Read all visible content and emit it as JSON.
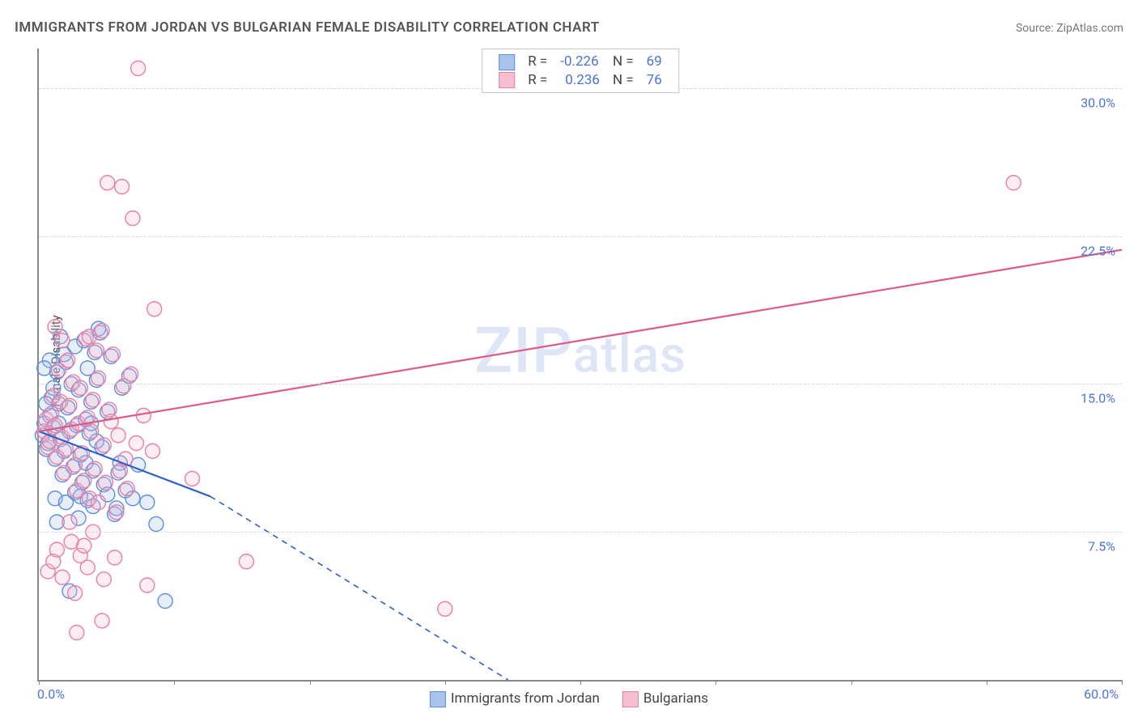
{
  "title": "IMMIGRANTS FROM JORDAN VS BULGARIAN FEMALE DISABILITY CORRELATION CHART",
  "source_label": "Source: ",
  "source_name": "ZipAtlas.com",
  "watermark_text": "ZIPatlas",
  "ylabel": "Female Disability",
  "chart": {
    "type": "scatter",
    "xlim": [
      0,
      60
    ],
    "ylim": [
      0,
      32
    ],
    "x_ticks": [
      0,
      7.5,
      15,
      22.5,
      30,
      37.5,
      45,
      52.5,
      60
    ],
    "x_tick_labels_shown": {
      "0": "0.0%",
      "60": "60.0%"
    },
    "y_gridlines": [
      7.5,
      15,
      22.5,
      30
    ],
    "y_tick_labels": {
      "7.5": "7.5%",
      "15": "15.0%",
      "22.5": "22.5%",
      "30": "30.0%"
    },
    "background_color": "#ffffff",
    "grid_color": "#d9d9d9",
    "axis_color": "#888888",
    "label_fontsize": 15,
    "tick_fontsize": 16,
    "tick_label_color": "#4a74d8",
    "marker_radius": 9,
    "marker_stroke_width": 1.4,
    "marker_fill_opacity": 0.28,
    "line_width": 2.2
  },
  "series": [
    {
      "name": "Immigrants from Jordan",
      "color_fill": "#a9c3ee",
      "color_stroke": "#5b8fdc",
      "line_color": "#2d5fc4",
      "R": "-0.226",
      "N": "69",
      "trend_line": {
        "x1": 0,
        "y1": 12.6,
        "x2": 9.5,
        "y2": 9.3,
        "dash_to_x": 26,
        "dash_to_y": 0
      },
      "points": [
        [
          0.2,
          12.4
        ],
        [
          0.3,
          13.0
        ],
        [
          0.4,
          11.7
        ],
        [
          0.5,
          12.0
        ],
        [
          0.6,
          13.4
        ],
        [
          0.7,
          14.3
        ],
        [
          0.8,
          12.8
        ],
        [
          0.9,
          11.2
        ],
        [
          1.0,
          15.6
        ],
        [
          1.1,
          14.0
        ],
        [
          1.2,
          12.2
        ],
        [
          1.3,
          10.4
        ],
        [
          1.4,
          11.6
        ],
        [
          1.5,
          16.1
        ],
        [
          1.6,
          13.8
        ],
        [
          1.7,
          12.6
        ],
        [
          1.8,
          15.0
        ],
        [
          1.9,
          10.8
        ],
        [
          2.0,
          9.5
        ],
        [
          2.1,
          12.9
        ],
        [
          2.2,
          14.7
        ],
        [
          2.3,
          11.4
        ],
        [
          2.4,
          10.0
        ],
        [
          2.5,
          17.2
        ],
        [
          2.6,
          13.2
        ],
        [
          2.7,
          9.1
        ],
        [
          2.8,
          12.5
        ],
        [
          2.9,
          14.1
        ],
        [
          3.0,
          10.6
        ],
        [
          3.1,
          16.6
        ],
        [
          3.2,
          15.2
        ],
        [
          3.4,
          17.6
        ],
        [
          3.5,
          11.8
        ],
        [
          3.6,
          9.9
        ],
        [
          3.8,
          13.6
        ],
        [
          4.0,
          16.4
        ],
        [
          4.2,
          8.4
        ],
        [
          4.4,
          10.5
        ],
        [
          4.6,
          14.8
        ],
        [
          4.8,
          9.6
        ],
        [
          5.0,
          15.4
        ],
        [
          3.3,
          17.8
        ],
        [
          2.0,
          16.9
        ],
        [
          1.2,
          17.4
        ],
        [
          4.5,
          11.0
        ],
        [
          5.2,
          9.2
        ],
        [
          5.5,
          10.9
        ],
        [
          6.0,
          9.0
        ],
        [
          6.5,
          7.9
        ],
        [
          7.0,
          4.0
        ],
        [
          0.9,
          9.2
        ],
        [
          1.5,
          9.0
        ],
        [
          2.3,
          9.3
        ],
        [
          3.0,
          8.8
        ],
        [
          2.7,
          15.8
        ],
        [
          2.2,
          8.2
        ],
        [
          1.0,
          8.0
        ],
        [
          3.8,
          9.4
        ],
        [
          4.3,
          8.7
        ],
        [
          1.7,
          4.5
        ],
        [
          1.4,
          16.5
        ],
        [
          0.6,
          16.2
        ],
        [
          0.3,
          15.8
        ],
        [
          0.8,
          14.8
        ],
        [
          0.4,
          14.0
        ],
        [
          1.1,
          13.0
        ],
        [
          2.6,
          11.0
        ],
        [
          3.2,
          12.1
        ],
        [
          2.9,
          13.0
        ]
      ]
    },
    {
      "name": "Bulgarians",
      "color_fill": "#f6bfcf",
      "color_stroke": "#e97fa5",
      "line_color": "#e05a88",
      "R": "0.236",
      "N": "76",
      "trend_line": {
        "x1": 0,
        "y1": 12.6,
        "x2": 60,
        "y2": 21.8
      },
      "points": [
        [
          0.3,
          12.6
        ],
        [
          0.4,
          13.2
        ],
        [
          0.5,
          11.8
        ],
        [
          0.6,
          12.1
        ],
        [
          0.7,
          13.5
        ],
        [
          0.8,
          14.4
        ],
        [
          0.9,
          12.9
        ],
        [
          1.0,
          11.3
        ],
        [
          1.1,
          15.7
        ],
        [
          1.2,
          14.1
        ],
        [
          1.3,
          12.3
        ],
        [
          1.4,
          10.5
        ],
        [
          1.5,
          11.7
        ],
        [
          1.6,
          16.2
        ],
        [
          1.7,
          13.9
        ],
        [
          1.8,
          12.7
        ],
        [
          1.9,
          15.1
        ],
        [
          2.0,
          10.9
        ],
        [
          2.1,
          9.6
        ],
        [
          2.2,
          13.0
        ],
        [
          2.3,
          14.8
        ],
        [
          2.4,
          11.5
        ],
        [
          2.5,
          10.1
        ],
        [
          2.6,
          17.3
        ],
        [
          2.7,
          13.3
        ],
        [
          2.8,
          9.2
        ],
        [
          2.9,
          12.6
        ],
        [
          3.0,
          14.2
        ],
        [
          3.1,
          10.7
        ],
        [
          3.2,
          16.7
        ],
        [
          3.3,
          15.3
        ],
        [
          3.5,
          17.7
        ],
        [
          3.6,
          11.9
        ],
        [
          3.7,
          10.0
        ],
        [
          3.9,
          13.7
        ],
        [
          4.1,
          16.5
        ],
        [
          4.3,
          8.5
        ],
        [
          4.5,
          10.6
        ],
        [
          4.7,
          14.9
        ],
        [
          4.9,
          9.7
        ],
        [
          5.1,
          15.5
        ],
        [
          0.5,
          5.5
        ],
        [
          0.8,
          6.0
        ],
        [
          1.3,
          5.2
        ],
        [
          1.8,
          7.0
        ],
        [
          2.0,
          4.4
        ],
        [
          2.3,
          6.3
        ],
        [
          2.7,
          5.7
        ],
        [
          3.0,
          7.5
        ],
        [
          3.6,
          5.1
        ],
        [
          4.2,
          6.2
        ],
        [
          6.0,
          4.8
        ],
        [
          8.5,
          10.2
        ],
        [
          11.5,
          6.0
        ],
        [
          22.5,
          3.6
        ],
        [
          3.5,
          3.0
        ],
        [
          5.5,
          31.0
        ],
        [
          3.8,
          25.2
        ],
        [
          4.6,
          25.0
        ],
        [
          5.2,
          23.4
        ],
        [
          6.4,
          18.8
        ],
        [
          54.0,
          25.2
        ],
        [
          2.1,
          2.4
        ],
        [
          1.3,
          17.2
        ],
        [
          0.9,
          17.9
        ],
        [
          2.8,
          17.4
        ],
        [
          4.0,
          13.1
        ],
        [
          4.4,
          12.4
        ],
        [
          4.8,
          11.2
        ],
        [
          5.4,
          12.0
        ],
        [
          5.8,
          13.4
        ],
        [
          6.3,
          11.6
        ],
        [
          1.0,
          6.6
        ],
        [
          1.7,
          8.0
        ],
        [
          2.5,
          6.8
        ],
        [
          3.3,
          9.0
        ]
      ]
    }
  ],
  "legend_labels": {
    "R": "R",
    "N": "N",
    "eq": "="
  }
}
